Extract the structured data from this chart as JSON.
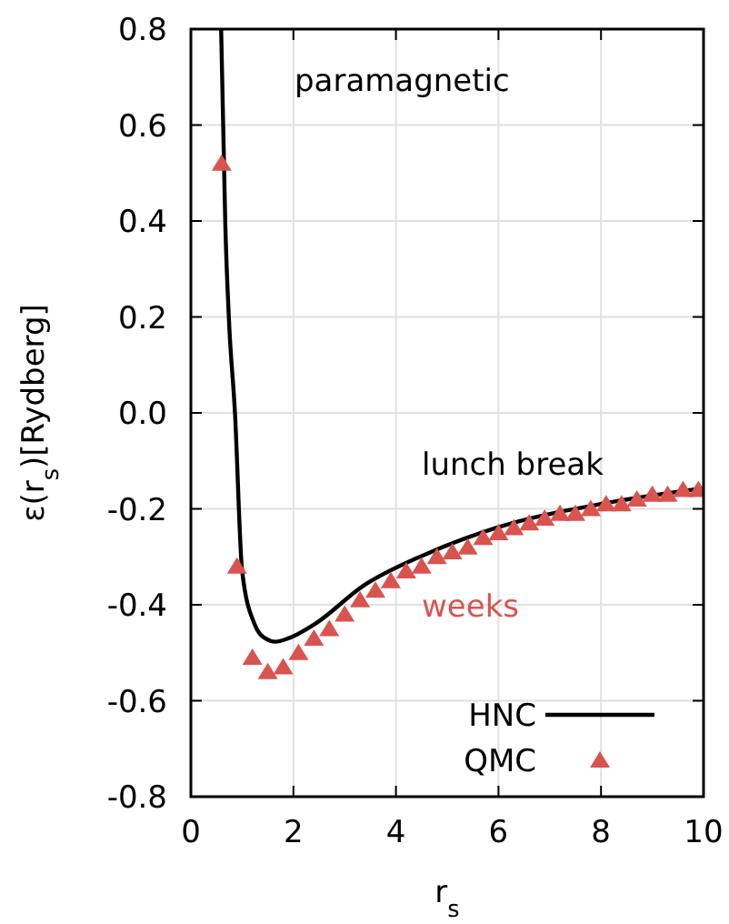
{
  "chart_data": {
    "type": "line",
    "xlabel": "r$_{s}$",
    "ylabel": "ε(r$_{s}$)[Rydberg]",
    "xlim": [
      0,
      10
    ],
    "xticks": [
      0,
      2,
      4,
      6,
      8,
      10
    ],
    "ylim": [
      -0.8,
      0.8
    ],
    "yticks": [
      {
        "value": -0.8,
        "label": "-0.8"
      },
      {
        "value": -0.6,
        "label": "-0.6"
      },
      {
        "value": -0.4,
        "label": "-0.4"
      },
      {
        "value": -0.2,
        "label": "-0.2"
      },
      {
        "value": 0,
        "label": "0.0"
      },
      {
        "value": 0.2,
        "label": "0.2"
      },
      {
        "value": 0.4,
        "label": "0.4"
      },
      {
        "value": 0.6,
        "label": "0.6"
      },
      {
        "value": 0.8,
        "label": "0.8"
      }
    ],
    "grid": true,
    "legend": "bottom right",
    "annotations": [
      "paramagnetic",
      "lunch break",
      "weeks"
    ],
    "series": [
      {
        "name": "HNC",
        "color": "#000000",
        "marker": "none",
        "line_style": "solid",
        "x": [
          0.59,
          0.63,
          0.67,
          0.74,
          0.86,
          1.0,
          1.24,
          1.45,
          1.65,
          1.9,
          2.42,
          3.37,
          4.55,
          5.97,
          8.09,
          10
        ],
        "values": [
          0.8,
          0.6,
          0.4,
          0.2,
          0,
          -0.33,
          -0.44,
          -0.47,
          -0.477,
          -0.47,
          -0.44,
          -0.36,
          -0.296,
          -0.239,
          -0.188,
          -0.157
        ]
      },
      {
        "name": "QMC",
        "type": "scatter",
        "color": "#d9534f",
        "marker": "triangle",
        "x": [
          0.6,
          0.9,
          1.2,
          1.5,
          1.8,
          2.1,
          2.4,
          2.7,
          3.0,
          3.3,
          3.6,
          3.9,
          4.2,
          4.5,
          4.8,
          5.1,
          5.4,
          5.7,
          6.0,
          6.3,
          6.6,
          6.9,
          7.2,
          7.5,
          7.8,
          8.1,
          8.4,
          8.7,
          9.0,
          9.3,
          9.6,
          9.9
        ],
        "values": [
          0.52,
          -0.32,
          -0.51,
          -0.54,
          -0.53,
          -0.5,
          -0.47,
          -0.45,
          -0.42,
          -0.39,
          -0.37,
          -0.35,
          -0.33,
          -0.32,
          -0.3,
          -0.29,
          -0.28,
          -0.26,
          -0.25,
          -0.24,
          -0.23,
          -0.22,
          -0.21,
          -0.21,
          -0.2,
          -0.19,
          -0.19,
          -0.18,
          -0.17,
          -0.17,
          -0.16,
          -0.16
        ]
      }
    ]
  }
}
